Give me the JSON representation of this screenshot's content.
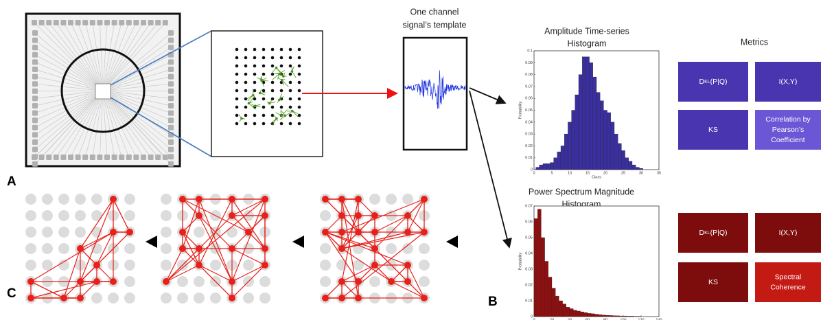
{
  "panel_labels": [
    "A",
    "B",
    "C"
  ],
  "signal_title": [
    "One channel",
    "signal’s template"
  ],
  "histograms": [
    {
      "title": [
        "Amplitude Time-series",
        "Histogram"
      ],
      "xlabel": "Class",
      "ylabel": "Probability",
      "color": "#3a2f9e",
      "bins": [
        0.5,
        1.5,
        2.5,
        3.5,
        4.5,
        5.5,
        6.5,
        7.5,
        8.5,
        9.5,
        10.5,
        11.5,
        12.5,
        13.5,
        14.5,
        15.5,
        16.5,
        17.5,
        18.5,
        19.5,
        20.5,
        21.5,
        22.5,
        23.5,
        24.5,
        25.5,
        26.5,
        27.5,
        28.5,
        29.5,
        30.5
      ],
      "counts": [
        0.002,
        0.004,
        0.005,
        0.005,
        0.006,
        0.01,
        0.015,
        0.02,
        0.03,
        0.04,
        0.05,
        0.063,
        0.08,
        0.095,
        0.095,
        0.09,
        0.078,
        0.065,
        0.058,
        0.05,
        0.048,
        0.04,
        0.03,
        0.022,
        0.016,
        0.01,
        0.007,
        0.004,
        0.002,
        0.001
      ],
      "xlim": [
        0,
        35
      ],
      "ylim": [
        0,
        0.1
      ],
      "xticks": [
        0,
        5,
        10,
        15,
        20,
        25,
        30,
        35
      ],
      "yticks": [
        0,
        0.01,
        0.02,
        0.03,
        0.04,
        0.05,
        0.06,
        0.07,
        0.08,
        0.09,
        0.1
      ]
    },
    {
      "title": [
        "Power Spectrum Magnitude",
        "Histogram"
      ],
      "xlabel": "Class",
      "ylabel": "Probability",
      "color": "#8e0f0f",
      "bins": [
        0,
        4,
        8,
        12,
        16,
        20,
        24,
        28,
        32,
        36,
        40,
        44,
        48,
        52,
        56,
        60,
        64,
        68,
        72,
        76,
        80,
        84,
        88,
        92,
        96,
        100,
        104,
        108,
        112,
        116,
        120
      ],
      "counts": [
        0.062,
        0.068,
        0.05,
        0.035,
        0.025,
        0.018,
        0.013,
        0.01,
        0.008,
        0.006,
        0.005,
        0.004,
        0.0035,
        0.003,
        0.0025,
        0.002,
        0.0018,
        0.0015,
        0.0012,
        0.001,
        0.0008,
        0.0007,
        0.0006,
        0.0005,
        0.0004,
        0.0004,
        0.0003,
        0.0003,
        0.0002,
        0.0002
      ],
      "xlim": [
        0,
        140
      ],
      "ylim": [
        0,
        0.07
      ],
      "xticks": [
        0,
        20,
        40,
        60,
        80,
        100,
        120,
        140
      ],
      "yticks": [
        0,
        0.01,
        0.02,
        0.03,
        0.04,
        0.05,
        0.06,
        0.07
      ]
    }
  ],
  "metrics": {
    "title": "Metrics",
    "groups": [
      [
        {
          "parts": [
            "D",
            "KL",
            "(P|Q)"
          ]
        },
        {
          "lines": [
            "I(X,Y)"
          ]
        },
        {
          "lines": [
            "KS"
          ]
        },
        {
          "lines": [
            "Correlation by",
            "Pearson’s",
            "Coefficient"
          ]
        }
      ],
      [
        {
          "parts": [
            "D",
            "KL",
            "(P|Q)"
          ]
        },
        {
          "lines": [
            "I(X,Y)"
          ]
        },
        {
          "lines": [
            "KS"
          ]
        },
        {
          "lines": [
            "Spectral",
            "Coherence"
          ]
        }
      ]
    ]
  }
}
